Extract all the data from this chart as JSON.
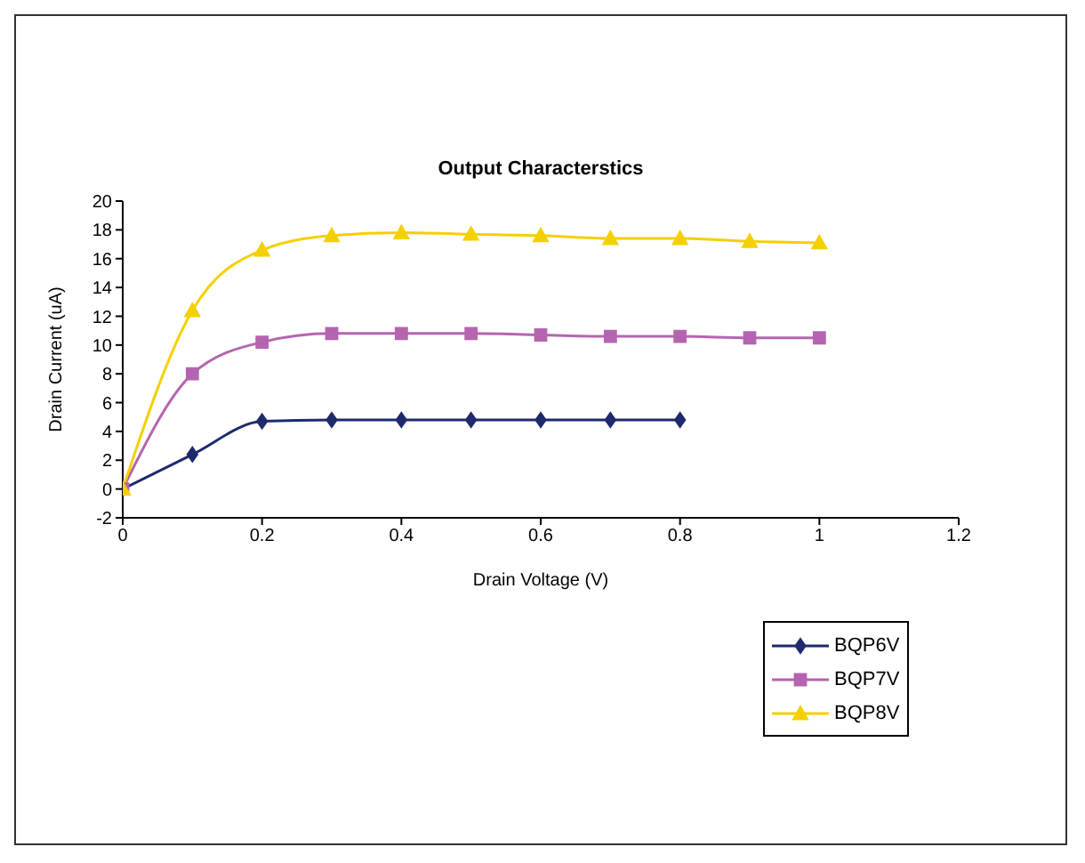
{
  "chart_data": {
    "type": "line",
    "title": "Output Characterstics",
    "xlabel": "Drain Voltage (V)",
    "ylabel": "Drain Current (uA)",
    "x": [
      0,
      0.1,
      0.2,
      0.3,
      0.4,
      0.5,
      0.6,
      0.7,
      0.8,
      0.9,
      1
    ],
    "series": [
      {
        "name": "BQP6V",
        "color": "#1f2a6e",
        "marker": "diamond",
        "values": [
          0,
          2.4,
          4.7,
          4.8,
          4.8,
          4.8,
          4.8,
          4.8,
          4.8,
          null,
          null
        ]
      },
      {
        "name": "BQP7V",
        "color": "#b565b0",
        "marker": "square",
        "values": [
          0,
          8.0,
          10.2,
          10.8,
          10.8,
          10.8,
          10.7,
          10.6,
          10.6,
          10.5,
          10.5
        ]
      },
      {
        "name": "BQP8V",
        "color": "#f5d000",
        "marker": "triangle",
        "values": [
          0,
          12.4,
          16.6,
          17.6,
          17.8,
          17.7,
          17.6,
          17.4,
          17.4,
          17.2,
          17.1
        ]
      }
    ],
    "xlim": [
      0,
      1.2
    ],
    "xticks": [
      0,
      0.2,
      0.4,
      0.6,
      0.8,
      1,
      1.2
    ],
    "ylim": [
      -2,
      20
    ],
    "yticks": [
      -2,
      0,
      2,
      4,
      6,
      8,
      10,
      12,
      14,
      16,
      18,
      20
    ],
    "grid": false,
    "legend": "bottom right",
    "line_style": "solid"
  }
}
